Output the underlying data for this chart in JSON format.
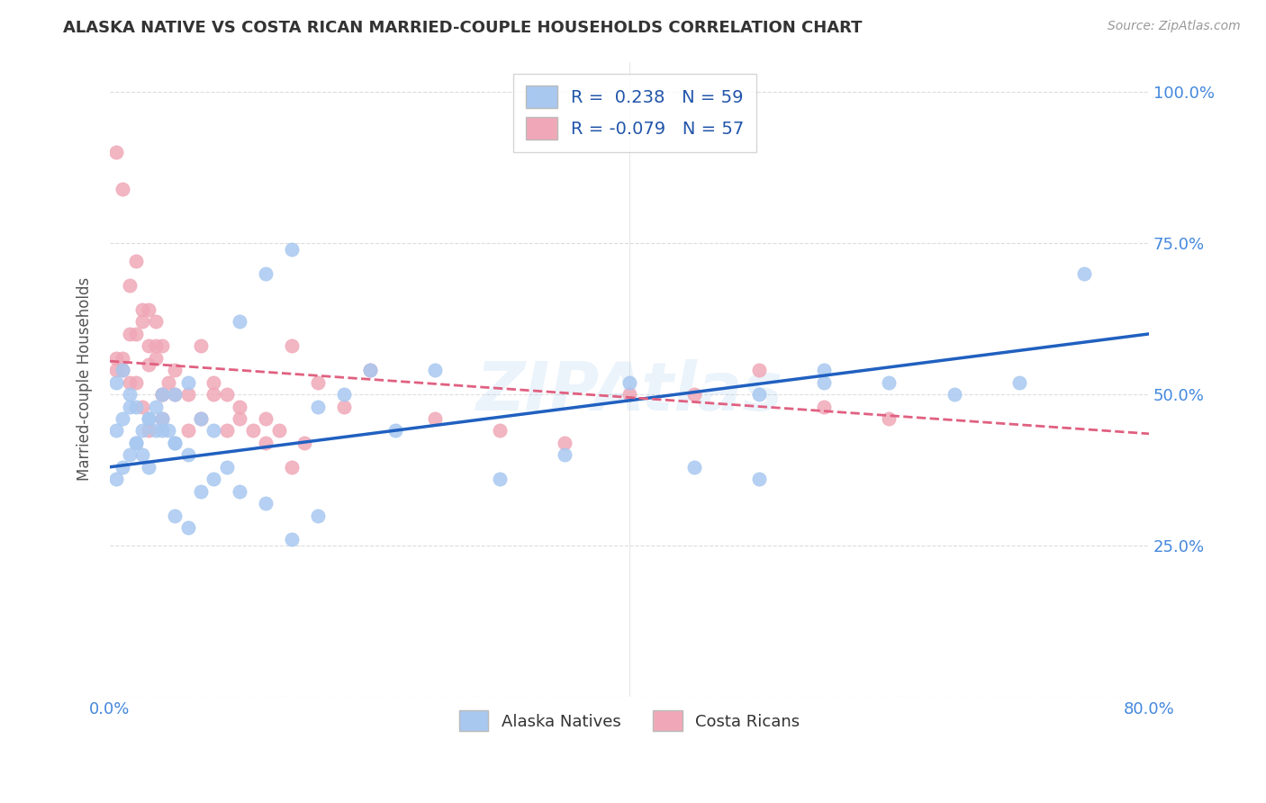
{
  "title": "ALASKA NATIVE VS COSTA RICAN MARRIED-COUPLE HOUSEHOLDS CORRELATION CHART",
  "source": "Source: ZipAtlas.com",
  "ylabel": "Married-couple Households",
  "xlim": [
    0.0,
    0.8
  ],
  "ylim": [
    0.0,
    1.05
  ],
  "xtick_positions": [
    0.0,
    0.1,
    0.2,
    0.3,
    0.4,
    0.5,
    0.6,
    0.7,
    0.8
  ],
  "xticklabels": [
    "0.0%",
    "",
    "",
    "",
    "",
    "",
    "",
    "",
    "80.0%"
  ],
  "ytick_positions": [
    0.0,
    0.25,
    0.5,
    0.75,
    1.0
  ],
  "yticklabels": [
    "",
    "25.0%",
    "50.0%",
    "75.0%",
    "100.0%"
  ],
  "watermark": "ZIPAtlas",
  "blue_scatter_color": "#A8C8F0",
  "pink_scatter_color": "#F0A8B8",
  "blue_line_color": "#2060C0",
  "pink_line_color": "#E06080",
  "tick_color": "#4488DD",
  "background_color": "#FFFFFF",
  "alaska_x": [
    0.005,
    0.01,
    0.015,
    0.02,
    0.025,
    0.03,
    0.035,
    0.04,
    0.05,
    0.06,
    0.005,
    0.01,
    0.015,
    0.02,
    0.025,
    0.03,
    0.035,
    0.04,
    0.045,
    0.05,
    0.005,
    0.01,
    0.015,
    0.02,
    0.03,
    0.04,
    0.05,
    0.06,
    0.07,
    0.08,
    0.1,
    0.12,
    0.14,
    0.16,
    0.18,
    0.2,
    0.22,
    0.25,
    0.3,
    0.35,
    0.4,
    0.45,
    0.5,
    0.55,
    0.6,
    0.65,
    0.7,
    0.75,
    0.5,
    0.55,
    0.05,
    0.06,
    0.07,
    0.08,
    0.09,
    0.1,
    0.12,
    0.14,
    0.16
  ],
  "alaska_y": [
    0.44,
    0.46,
    0.48,
    0.42,
    0.4,
    0.38,
    0.44,
    0.46,
    0.5,
    0.52,
    0.36,
    0.38,
    0.4,
    0.42,
    0.44,
    0.46,
    0.48,
    0.5,
    0.44,
    0.42,
    0.52,
    0.54,
    0.5,
    0.48,
    0.46,
    0.44,
    0.42,
    0.4,
    0.46,
    0.44,
    0.62,
    0.7,
    0.74,
    0.48,
    0.5,
    0.54,
    0.44,
    0.54,
    0.36,
    0.4,
    0.52,
    0.38,
    0.36,
    0.54,
    0.52,
    0.5,
    0.52,
    0.7,
    0.5,
    0.52,
    0.3,
    0.28,
    0.34,
    0.36,
    0.38,
    0.34,
    0.32,
    0.26,
    0.3
  ],
  "costa_x": [
    0.005,
    0.01,
    0.015,
    0.02,
    0.025,
    0.03,
    0.035,
    0.04,
    0.005,
    0.01,
    0.015,
    0.02,
    0.025,
    0.03,
    0.035,
    0.04,
    0.005,
    0.01,
    0.015,
    0.02,
    0.025,
    0.03,
    0.035,
    0.04,
    0.045,
    0.05,
    0.06,
    0.07,
    0.08,
    0.09,
    0.1,
    0.12,
    0.14,
    0.16,
    0.18,
    0.2,
    0.25,
    0.3,
    0.35,
    0.4,
    0.45,
    0.5,
    0.55,
    0.6,
    0.03,
    0.04,
    0.05,
    0.06,
    0.07,
    0.08,
    0.09,
    0.1,
    0.11,
    0.12,
    0.13,
    0.14,
    0.15
  ],
  "costa_y": [
    0.9,
    0.84,
    0.68,
    0.72,
    0.64,
    0.58,
    0.62,
    0.5,
    0.56,
    0.54,
    0.6,
    0.52,
    0.48,
    0.55,
    0.58,
    0.5,
    0.54,
    0.56,
    0.52,
    0.6,
    0.62,
    0.64,
    0.56,
    0.58,
    0.52,
    0.54,
    0.5,
    0.58,
    0.52,
    0.5,
    0.48,
    0.46,
    0.58,
    0.52,
    0.48,
    0.54,
    0.46,
    0.44,
    0.42,
    0.5,
    0.5,
    0.54,
    0.48,
    0.46,
    0.44,
    0.46,
    0.5,
    0.44,
    0.46,
    0.5,
    0.44,
    0.46,
    0.44,
    0.42,
    0.44,
    0.38,
    0.42
  ],
  "alaska_line_x0": 0.0,
  "alaska_line_x1": 0.8,
  "alaska_line_y0": 0.38,
  "alaska_line_y1": 0.6,
  "costa_line_x0": 0.0,
  "costa_line_x1": 0.8,
  "costa_line_y0": 0.555,
  "costa_line_y1": 0.435
}
